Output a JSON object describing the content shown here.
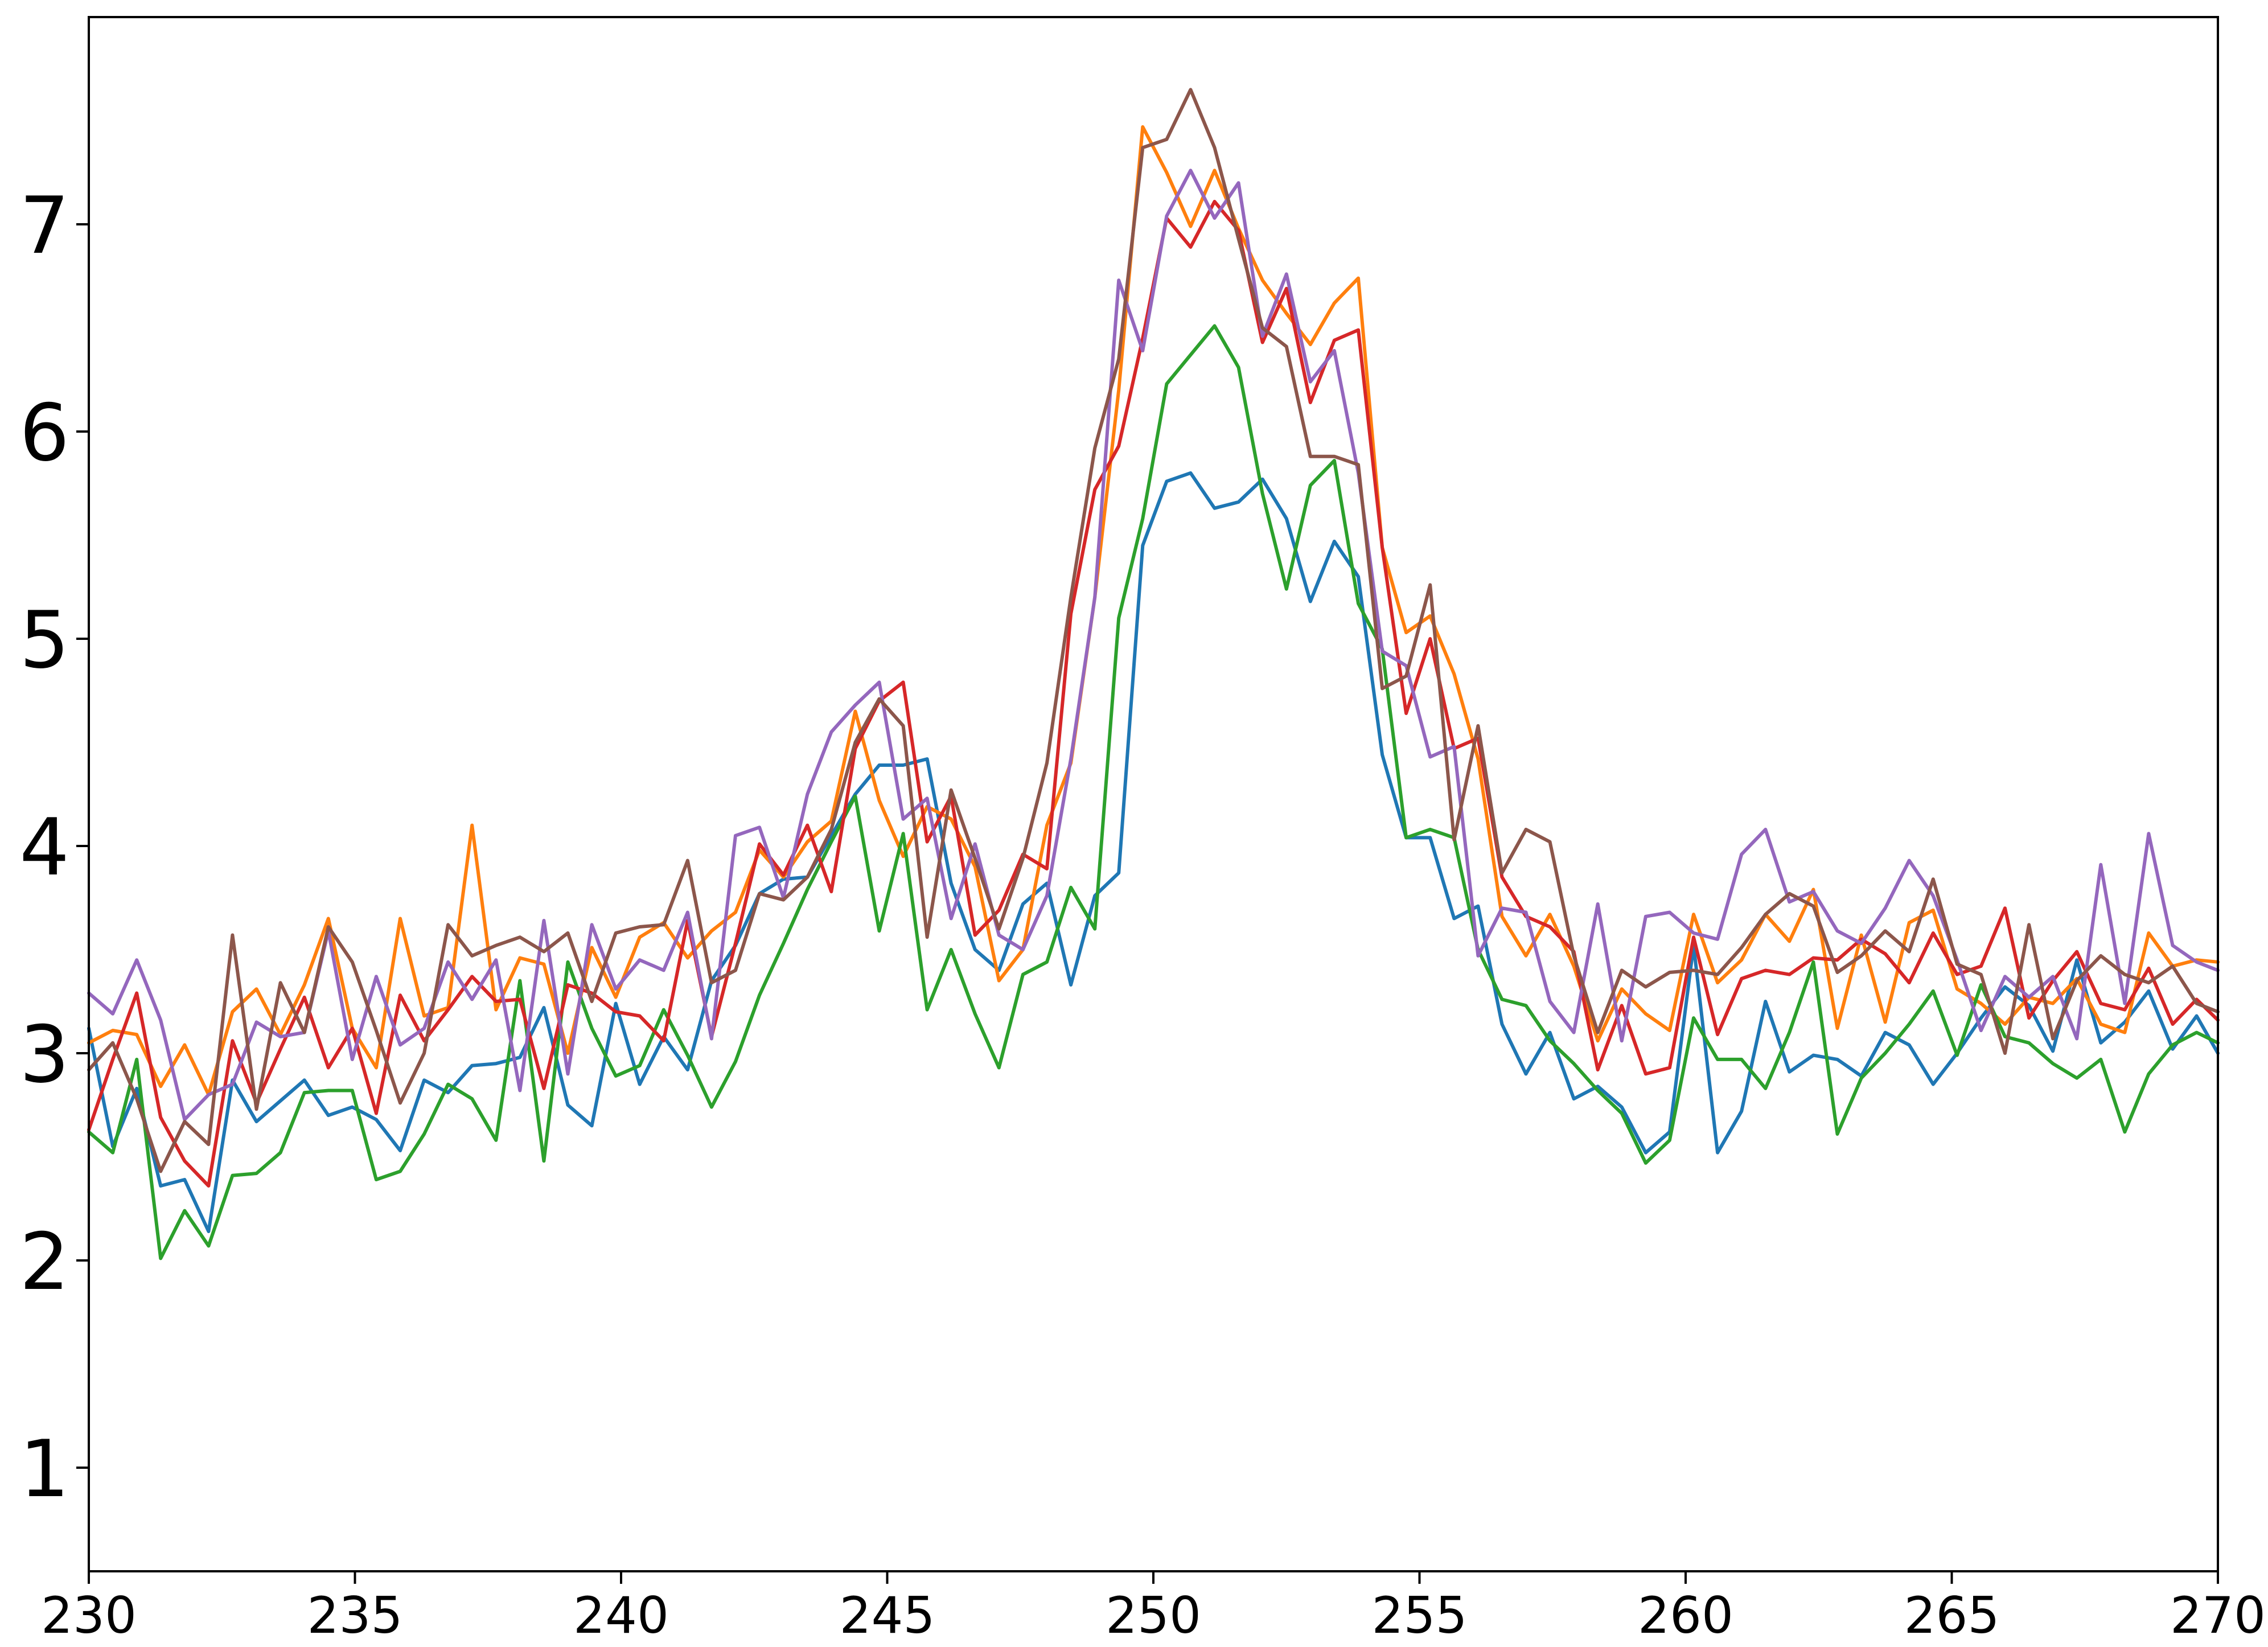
{
  "chart_data": {
    "type": "line",
    "title": "",
    "xlabel": "",
    "ylabel": "",
    "xlim": [
      230,
      270
    ],
    "ylim": [
      0.5,
      8.0
    ],
    "xticks": [
      230,
      235,
      240,
      245,
      250,
      255,
      260,
      265,
      270
    ],
    "yticks": [
      1,
      2,
      3,
      4,
      5,
      6,
      7
    ],
    "grid": false,
    "legend": "none",
    "x": [
      230.0,
      230.45,
      230.9,
      231.35,
      231.8,
      232.25,
      232.7,
      233.15,
      233.6,
      234.05,
      234.5,
      234.95,
      235.4,
      235.85,
      236.3,
      236.75,
      237.2,
      237.65,
      238.1,
      238.55,
      239.0,
      239.45,
      239.9,
      240.35,
      240.8,
      241.25,
      241.7,
      242.15,
      242.6,
      243.05,
      243.5,
      243.95,
      244.4,
      244.85,
      245.3,
      245.75,
      246.2,
      246.65,
      247.1,
      247.55,
      248.0,
      248.45,
      248.9,
      249.35,
      249.8,
      250.25,
      250.7,
      251.15,
      251.6,
      252.05,
      252.5,
      252.95,
      253.4,
      253.85,
      254.3,
      254.75,
      255.2,
      255.65,
      256.1,
      256.55,
      257.0,
      257.45,
      257.9,
      258.35,
      258.8,
      259.25,
      259.7,
      260.15,
      260.6,
      261.05,
      261.5,
      261.95,
      262.4,
      262.85,
      263.3,
      263.75,
      264.2,
      264.65,
      265.1,
      265.55,
      266.0,
      266.45,
      266.9,
      267.35,
      267.8,
      268.25,
      268.7,
      269.15,
      269.6,
      270.0
    ],
    "series": [
      {
        "color": "#1f77b4",
        "values": [
          3.12,
          2.55,
          2.83,
          2.36,
          2.39,
          2.14,
          2.87,
          2.67,
          2.77,
          2.87,
          2.7,
          2.74,
          2.68,
          2.53,
          2.87,
          2.81,
          2.94,
          2.95,
          2.98,
          3.22,
          2.75,
          2.65,
          3.24,
          2.85,
          3.08,
          2.92,
          3.35,
          3.52,
          3.77,
          3.84,
          3.85,
          4.05,
          4.25,
          4.39,
          4.39,
          4.42,
          3.82,
          3.5,
          3.4,
          3.72,
          3.82,
          3.33,
          3.76,
          3.87,
          5.45,
          5.76,
          5.8,
          5.63,
          5.66,
          5.77,
          5.58,
          5.18,
          5.47,
          5.3,
          4.44,
          4.04,
          4.04,
          3.65,
          3.71,
          3.14,
          2.9,
          3.1,
          2.78,
          2.84,
          2.74,
          2.52,
          2.62,
          3.52,
          2.52,
          2.72,
          3.25,
          2.91,
          2.99,
          2.97,
          2.89,
          3.1,
          3.04,
          2.85,
          3.0,
          3.17,
          3.32,
          3.23,
          3.01,
          3.45,
          3.05,
          3.15,
          3.3,
          3.02,
          3.18,
          3.0
        ]
      },
      {
        "color": "#ff7f0e",
        "values": [
          3.05,
          3.11,
          3.09,
          2.84,
          3.04,
          2.8,
          3.2,
          3.31,
          3.09,
          3.33,
          3.65,
          3.12,
          2.93,
          3.65,
          3.18,
          3.22,
          4.1,
          3.21,
          3.46,
          3.43,
          3.0,
          3.51,
          3.27,
          3.56,
          3.63,
          3.46,
          3.59,
          3.68,
          3.98,
          3.85,
          4.02,
          4.12,
          4.65,
          4.22,
          3.95,
          4.19,
          4.13,
          3.9,
          3.35,
          3.5,
          4.1,
          4.4,
          5.2,
          6.2,
          7.47,
          7.25,
          6.99,
          7.26,
          6.98,
          6.73,
          6.57,
          6.42,
          6.62,
          6.74,
          5.44,
          5.03,
          5.11,
          4.83,
          4.42,
          3.66,
          3.47,
          3.67,
          3.42,
          3.06,
          3.31,
          3.19,
          3.11,
          3.67,
          3.34,
          3.45,
          3.67,
          3.54,
          3.79,
          3.12,
          3.57,
          3.15,
          3.63,
          3.69,
          3.31,
          3.24,
          3.14,
          3.27,
          3.24,
          3.36,
          3.14,
          3.1,
          3.58,
          3.42,
          3.45,
          3.44
        ]
      },
      {
        "color": "#2ca02c",
        "values": [
          2.62,
          2.52,
          2.97,
          2.01,
          2.24,
          2.07,
          2.41,
          2.42,
          2.52,
          2.81,
          2.82,
          2.82,
          2.39,
          2.43,
          2.61,
          2.85,
          2.78,
          2.58,
          3.35,
          2.48,
          3.44,
          3.12,
          2.89,
          2.94,
          3.21,
          2.99,
          2.74,
          2.96,
          3.28,
          3.53,
          3.79,
          4.02,
          4.24,
          3.59,
          4.06,
          3.21,
          3.5,
          3.19,
          2.93,
          3.38,
          3.44,
          3.8,
          3.6,
          5.1,
          5.58,
          6.23,
          6.37,
          6.51,
          6.31,
          5.7,
          5.24,
          5.74,
          5.86,
          5.17,
          4.95,
          4.04,
          4.08,
          4.04,
          3.5,
          3.26,
          3.23,
          3.06,
          2.95,
          2.82,
          2.71,
          2.47,
          2.58,
          3.17,
          2.97,
          2.97,
          2.83,
          3.1,
          3.44,
          2.61,
          2.88,
          3.0,
          3.14,
          3.3,
          2.99,
          3.33,
          3.08,
          3.05,
          2.95,
          2.88,
          2.97,
          2.62,
          2.9,
          3.04,
          3.1,
          3.05
        ]
      },
      {
        "color": "#d62728",
        "values": [
          2.63,
          2.97,
          3.29,
          2.69,
          2.48,
          2.36,
          3.06,
          2.76,
          3.02,
          3.27,
          2.93,
          3.12,
          2.71,
          3.28,
          3.06,
          3.21,
          3.37,
          3.25,
          3.26,
          2.83,
          3.33,
          3.29,
          3.2,
          3.18,
          3.06,
          3.64,
          3.08,
          3.53,
          4.01,
          3.86,
          4.1,
          3.78,
          4.47,
          4.7,
          4.79,
          4.02,
          4.24,
          3.57,
          3.69,
          3.96,
          3.89,
          5.12,
          5.72,
          5.93,
          6.45,
          7.03,
          6.89,
          7.11,
          6.97,
          6.43,
          6.69,
          6.14,
          6.44,
          6.49,
          5.44,
          4.64,
          5.0,
          4.47,
          4.52,
          3.85,
          3.66,
          3.61,
          3.49,
          2.92,
          3.23,
          2.9,
          2.93,
          3.56,
          3.09,
          3.36,
          3.4,
          3.38,
          3.46,
          3.45,
          3.55,
          3.48,
          3.34,
          3.58,
          3.38,
          3.42,
          3.7,
          3.17,
          3.35,
          3.49,
          3.24,
          3.21,
          3.41,
          3.14,
          3.26,
          3.16
        ]
      },
      {
        "color": "#9467bd",
        "values": [
          3.29,
          3.19,
          3.45,
          3.16,
          2.68,
          2.8,
          2.85,
          3.15,
          3.08,
          3.1,
          3.59,
          2.97,
          3.37,
          3.04,
          3.12,
          3.44,
          3.26,
          3.45,
          2.82,
          3.64,
          2.9,
          3.62,
          3.31,
          3.45,
          3.4,
          3.68,
          3.07,
          4.05,
          4.09,
          3.75,
          4.25,
          4.55,
          4.68,
          4.79,
          4.13,
          4.23,
          3.65,
          4.01,
          3.57,
          3.5,
          3.76,
          4.42,
          5.2,
          6.73,
          6.39,
          7.04,
          7.26,
          7.03,
          7.2,
          6.46,
          6.76,
          6.24,
          6.39,
          5.8,
          4.94,
          4.87,
          4.43,
          4.48,
          3.47,
          3.7,
          3.68,
          3.25,
          3.1,
          3.72,
          3.06,
          3.66,
          3.68,
          3.58,
          3.55,
          3.96,
          4.08,
          3.73,
          3.78,
          3.59,
          3.53,
          3.7,
          3.93,
          3.76,
          3.45,
          3.11,
          3.37,
          3.27,
          3.37,
          3.07,
          3.91,
          3.24,
          4.06,
          3.52,
          3.44,
          3.4
        ]
      },
      {
        "color": "#8c564b",
        "values": [
          2.92,
          3.05,
          2.78,
          2.43,
          2.67,
          2.56,
          3.57,
          2.73,
          3.34,
          3.1,
          3.61,
          3.44,
          3.11,
          2.76,
          3.0,
          3.62,
          3.47,
          3.52,
          3.56,
          3.49,
          3.58,
          3.25,
          3.58,
          3.61,
          3.62,
          3.93,
          3.34,
          3.4,
          3.77,
          3.74,
          3.85,
          4.08,
          4.5,
          4.71,
          4.58,
          3.56,
          4.27,
          3.94,
          3.6,
          3.94,
          4.4,
          5.2,
          5.92,
          6.35,
          7.37,
          7.41,
          7.65,
          7.37,
          6.93,
          6.5,
          6.41,
          5.88,
          5.88,
          5.84,
          4.76,
          4.82,
          5.26,
          4.03,
          4.58,
          3.87,
          4.08,
          4.02,
          3.47,
          3.1,
          3.4,
          3.32,
          3.39,
          3.4,
          3.38,
          3.51,
          3.67,
          3.77,
          3.71,
          3.39,
          3.47,
          3.59,
          3.49,
          3.84,
          3.43,
          3.38,
          3.0,
          3.62,
          3.07,
          3.35,
          3.47,
          3.38,
          3.34,
          3.42,
          3.24,
          3.2
        ]
      }
    ]
  }
}
